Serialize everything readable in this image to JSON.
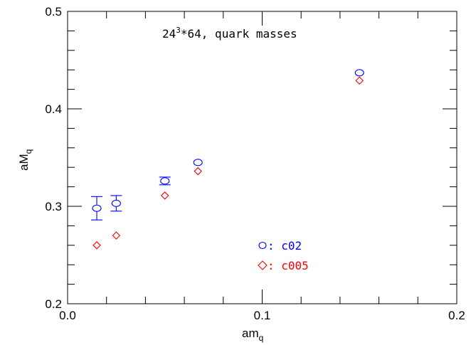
{
  "chart_data": {
    "type": "scatter",
    "annotation": {
      "base": "24",
      "superscript": "3",
      "rest": "*64, quark masses"
    },
    "xlabel": {
      "main": "am",
      "sub": "q"
    },
    "ylabel": {
      "main": "aM",
      "sub": "q"
    },
    "xlim": [
      0.0,
      0.2
    ],
    "ylim": [
      0.2,
      0.5
    ],
    "x_ticks": [
      "0.0",
      "0.1",
      "0.2"
    ],
    "y_ticks": [
      "0.2",
      "0.3",
      "0.4",
      "0.5"
    ],
    "grid": false,
    "legend_position": "bottom-center",
    "series": [
      {
        "name": "c02",
        "legend_label": ": c02",
        "marker": "circle",
        "color": "#0000ff",
        "points": [
          {
            "x": 0.015,
            "y": 0.298,
            "err": 0.012
          },
          {
            "x": 0.025,
            "y": 0.303,
            "err": 0.008
          },
          {
            "x": 0.05,
            "y": 0.326,
            "err": 0.004
          },
          {
            "x": 0.067,
            "y": 0.345,
            "err": 0.003
          },
          {
            "x": 0.15,
            "y": 0.437,
            "err": 0.002
          }
        ]
      },
      {
        "name": "c005",
        "legend_label": ": c005",
        "marker": "diamond",
        "color": "#ff0000",
        "points": [
          {
            "x": 0.015,
            "y": 0.26,
            "err": 0.004
          },
          {
            "x": 0.025,
            "y": 0.27,
            "err": 0.002
          },
          {
            "x": 0.05,
            "y": 0.311,
            "err": 0.004
          },
          {
            "x": 0.067,
            "y": 0.336,
            "err": 0.004
          },
          {
            "x": 0.15,
            "y": 0.429,
            "err": 0.002
          }
        ]
      }
    ]
  }
}
